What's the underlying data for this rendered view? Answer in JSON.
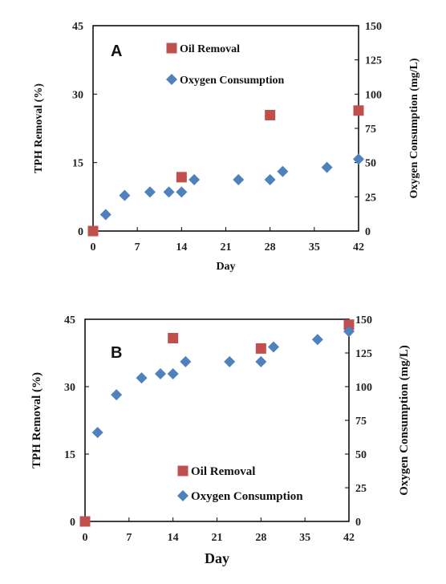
{
  "chart_data": [
    {
      "type": "scatter",
      "panel_label": "A",
      "xlabel": "Day",
      "ylabel": "TPH Removal (%)",
      "y2label": "Oxygen Consumption (mg/L)",
      "xlim": [
        0,
        42
      ],
      "ylim": [
        0,
        45
      ],
      "y2lim": [
        0,
        150
      ],
      "xticks": [
        "0",
        "7",
        "14",
        "21",
        "28",
        "35",
        "42"
      ],
      "yticks": [
        "0",
        "15",
        "30",
        "45"
      ],
      "y2ticks": [
        "0",
        "25",
        "50",
        "75",
        "100",
        "125",
        "150"
      ],
      "legend_position": "upper-center",
      "series": [
        {
          "name": "Oil Removal",
          "axis": "left",
          "marker": "square",
          "color": "#c0504d",
          "x": [
            0,
            14,
            28,
            42
          ],
          "y": [
            0,
            11.8,
            25.4,
            26.4
          ]
        },
        {
          "name": "Oxygen Consumption",
          "axis": "right",
          "marker": "diamond",
          "color": "#4f81bd",
          "x": [
            2,
            5,
            9,
            12,
            14,
            16,
            23,
            28,
            30,
            37,
            42
          ],
          "y": [
            12,
            26,
            28.5,
            28.5,
            28.5,
            37.5,
            37.5,
            37.5,
            43.5,
            46.5,
            52.5
          ]
        }
      ]
    },
    {
      "type": "scatter",
      "panel_label": "B",
      "xlabel": "Day",
      "ylabel": "TPH Removal (%)",
      "y2label": "Oxygen Consumption (mg/L)",
      "xlim": [
        0,
        42
      ],
      "ylim": [
        0,
        45
      ],
      "y2lim": [
        0,
        150
      ],
      "xticks": [
        "0",
        "7",
        "14",
        "21",
        "28",
        "35",
        "42"
      ],
      "yticks": [
        "0",
        "15",
        "30",
        "45"
      ],
      "y2ticks": [
        "0",
        "25",
        "50",
        "75",
        "100",
        "125",
        "150"
      ],
      "legend_position": "lower-center",
      "series": [
        {
          "name": "Oil Removal",
          "axis": "left",
          "marker": "square",
          "color": "#c0504d",
          "x": [
            0,
            14,
            28,
            42
          ],
          "y": [
            0,
            40.8,
            38.5,
            43.8
          ]
        },
        {
          "name": "Oxygen Consumption",
          "axis": "right",
          "marker": "diamond",
          "color": "#4f81bd",
          "x": [
            2,
            5,
            9,
            12,
            14,
            16,
            23,
            28,
            30,
            37,
            42
          ],
          "y": [
            66,
            94,
            106.5,
            109.5,
            109.5,
            118.5,
            118.5,
            118.5,
            129.5,
            135,
            141
          ]
        }
      ]
    }
  ]
}
